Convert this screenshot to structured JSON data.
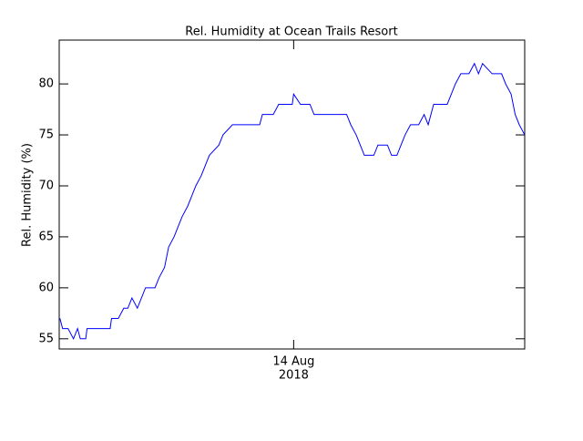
{
  "chart_data": {
    "type": "line",
    "title": "Rel. Humidity at Ocean Trails Resort",
    "ylabel": "Rel. Humidity (%)",
    "xlabel": "2018",
    "x": [
      6.8,
      7.0,
      7.4,
      7.8,
      8.1,
      8.3,
      8.7,
      8.8,
      9.8,
      10.5,
      10.6,
      11.1,
      11.5,
      11.8,
      12.1,
      12.5,
      12.8,
      13.1,
      13.8,
      14.1,
      14.5,
      14.8,
      15.2,
      15.5,
      15.8,
      16.2,
      16.5,
      16.8,
      17.2,
      17.5,
      17.8,
      18.5,
      18.8,
      19.5,
      20.2,
      21.5,
      21.7,
      22.5,
      22.9,
      23.9,
      24.0,
      24.5,
      24.9,
      25.2,
      25.5,
      26.5,
      27.9,
      28.2,
      28.6,
      28.9,
      29.2,
      29.6,
      29.9,
      30.2,
      30.9,
      31.2,
      31.6,
      31.9,
      32.2,
      32.6,
      33.2,
      33.6,
      33.9,
      34.3,
      35.3,
      35.6,
      35.9,
      36.3,
      36.9,
      37.3,
      37.6,
      37.9,
      38.6,
      39.3,
      39.6,
      40.0,
      40.3,
      40.6,
      41.0
    ],
    "series": [
      {
        "name": "Rel. Humidity",
        "color": "#0000ff",
        "values": [
          57,
          56,
          56,
          55,
          56,
          55,
          55,
          56,
          56,
          56,
          57,
          57,
          58,
          58,
          59,
          58,
          59,
          60,
          60,
          61,
          62,
          64,
          65,
          66,
          67,
          68,
          69,
          70,
          71,
          72,
          73,
          74,
          75,
          76,
          76,
          76,
          77,
          77,
          78,
          78,
          79,
          78,
          78,
          78,
          77,
          77,
          77,
          76,
          75,
          74,
          73,
          73,
          73,
          74,
          74,
          73,
          73,
          74,
          75,
          76,
          76,
          77,
          76,
          78,
          78,
          79,
          80,
          81,
          81,
          82,
          81,
          82,
          81,
          81,
          80,
          79,
          77,
          76,
          75
        ]
      }
    ],
    "xlim": [
      6.75,
      41.0
    ],
    "xticks": [
      {
        "value": 24,
        "label": "14 Aug"
      }
    ],
    "ylim": [
      54,
      84.3
    ],
    "yticks": [
      55,
      60,
      65,
      70,
      75,
      80
    ]
  }
}
